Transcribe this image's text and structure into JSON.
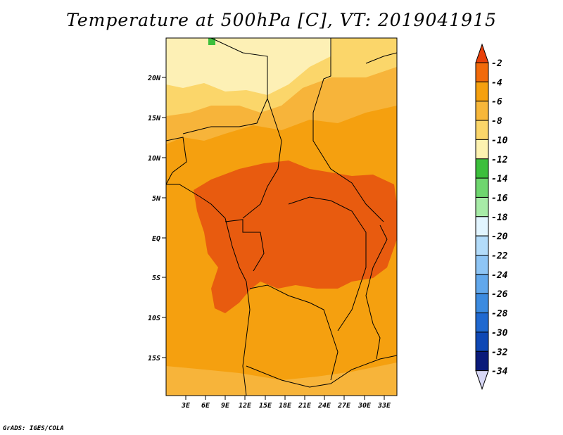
{
  "title": "Temperature at 500hPa [C], VT: 2019041915",
  "credit": "GrADS: IGES/COLA",
  "map": {
    "lat_labels": [
      "20N",
      "15N",
      "10N",
      "5N",
      "EQ",
      "5S",
      "10S",
      "15S"
    ],
    "lon_labels": [
      "3E",
      "6E",
      "9E",
      "12E",
      "15E",
      "18E",
      "21E",
      "24E",
      "27E",
      "30E",
      "33E"
    ]
  },
  "colorbar": {
    "labels": [
      "-2",
      "-4",
      "-6",
      "-8",
      "-10",
      "-12",
      "-14",
      "-16",
      "-18",
      "-20",
      "-22",
      "-24",
      "-26",
      "-28",
      "-30",
      "-32",
      "-34"
    ],
    "colors": [
      "#e8400a",
      "#f26a0a",
      "#f5a00f",
      "#f7b73a",
      "#fbd66a",
      "#fdf2b0",
      "#3cbf3c",
      "#6ed66e",
      "#a7eba7",
      "#e2f5ff",
      "#b3dcfa",
      "#8ec5f5",
      "#62a8ec",
      "#3c8be0",
      "#2069d0",
      "#0f48b5",
      "#0a1a7a",
      "#d7d7f5"
    ]
  },
  "colors": {
    "map_bg": "#f5a00f",
    "core": "#e85b0f",
    "north_light": "#fde08a",
    "north_pale": "#fdf0b5",
    "mid": "#f7b43a"
  }
}
